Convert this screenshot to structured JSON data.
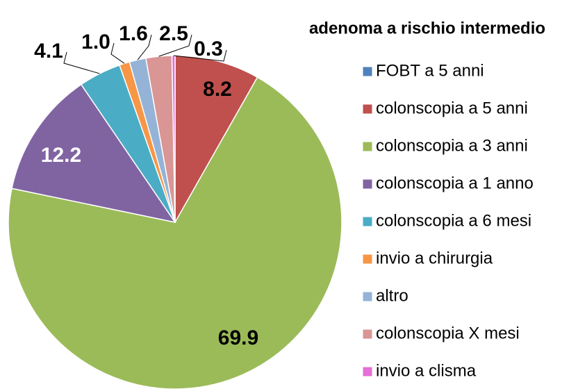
{
  "chart_data": {
    "type": "pie",
    "title": "adenoma a rischio intermedio",
    "categories": [
      "FOBT a 5 anni",
      "colonscopia a 5 anni",
      "colonscopia a 3 anni",
      "colonscopia a 1 anno",
      "colonscopia a 6 mesi",
      "invio a chirurgia",
      "altro",
      "colonscopia X mesi",
      "invio a clisma"
    ],
    "values": [
      0,
      8.2,
      69.9,
      12.2,
      4.1,
      1.0,
      1.6,
      2.5,
      0.3
    ],
    "value_labels": [
      null,
      "8.2",
      "69.9",
      "12.2",
      "4.1",
      "1.0",
      "1.6",
      "2.5",
      "0.3"
    ],
    "colors": [
      "#4f81bd",
      "#c0504d",
      "#9bbb59",
      "#8064a2",
      "#4bacc6",
      "#f79646",
      "#95b3d7",
      "#d99694",
      "#e46fd6"
    ],
    "legend": "right"
  }
}
